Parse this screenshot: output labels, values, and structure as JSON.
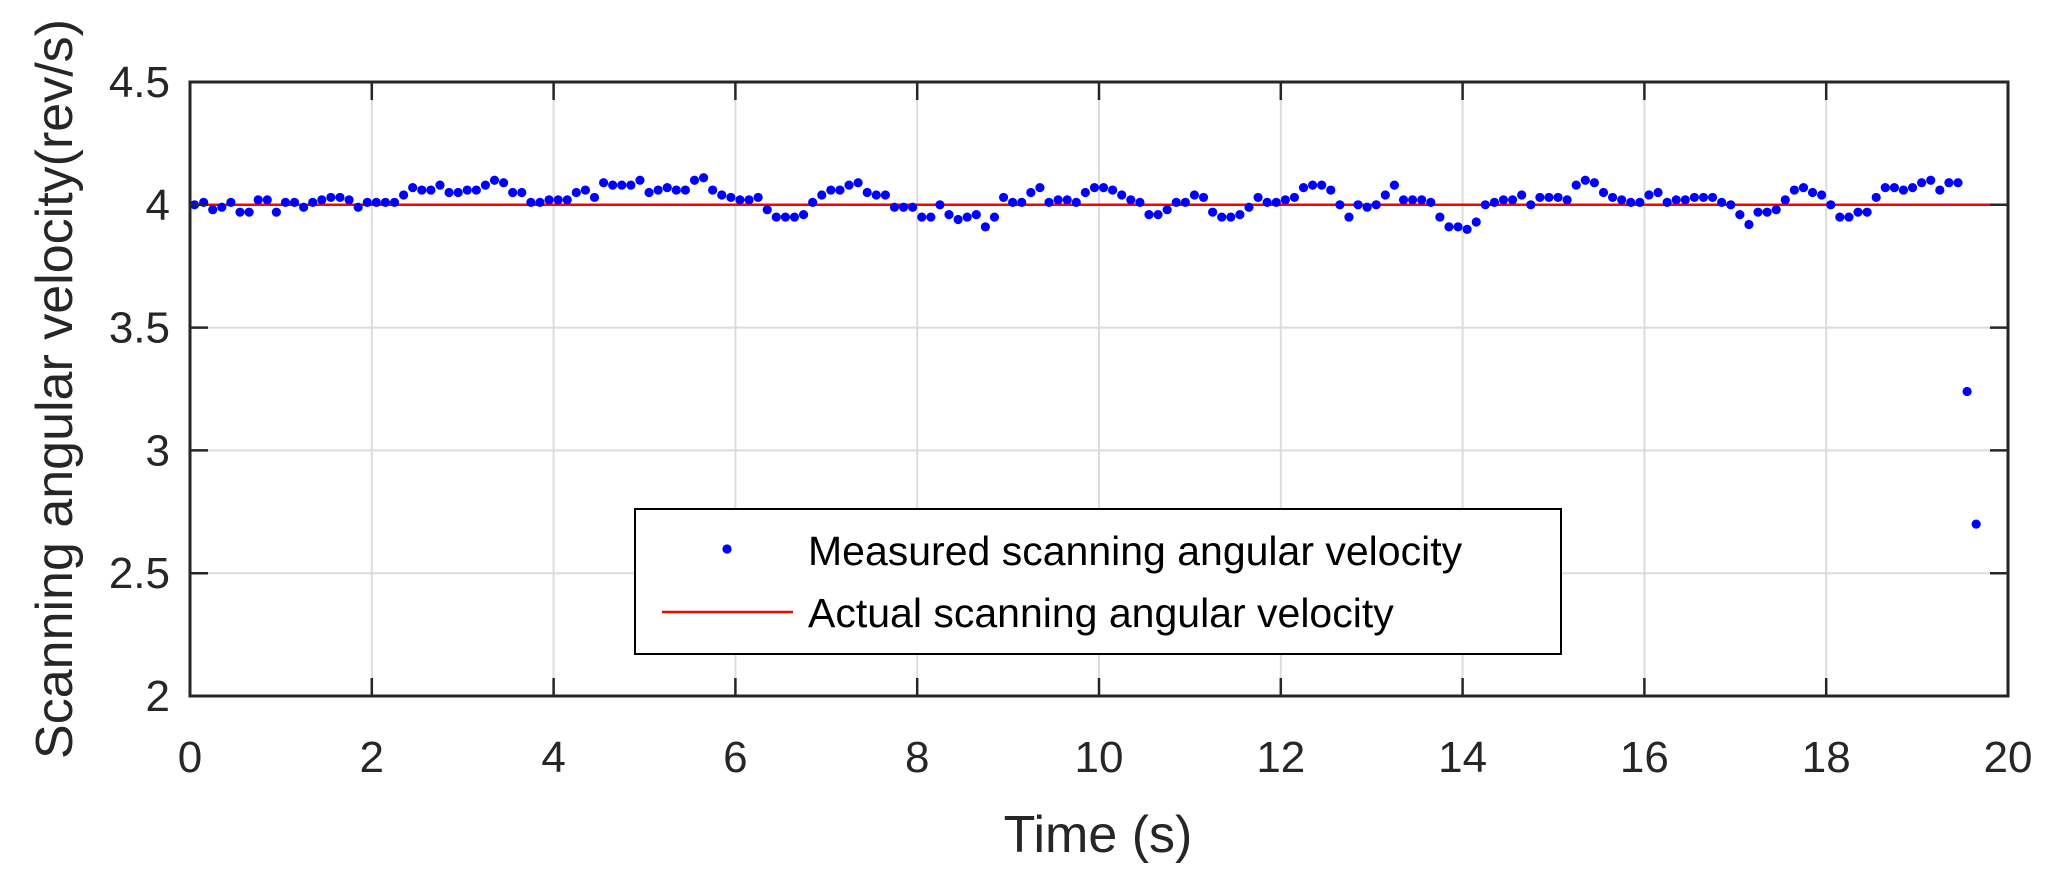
{
  "chart_data": {
    "type": "scatter",
    "xlabel": "Time (s)",
    "ylabel": "Scanning angular velocity(rev/s)",
    "xlim": [
      0,
      20
    ],
    "ylim": [
      2,
      4.5
    ],
    "xticks": [
      0,
      2,
      4,
      6,
      8,
      10,
      12,
      14,
      16,
      18,
      20
    ],
    "yticks": [
      2,
      2.5,
      3,
      3.5,
      4,
      4.5
    ],
    "xtick_labels": [
      "0",
      "2",
      "4",
      "6",
      "8",
      "10",
      "12",
      "14",
      "16",
      "18",
      "20"
    ],
    "ytick_labels": [
      "2",
      "2.5",
      "3",
      "3.5",
      "4",
      "4.5"
    ],
    "grid": true,
    "legend_position": "center-bottom",
    "series": [
      {
        "name": "Measured scanning angular velocity",
        "kind": "scatter",
        "color": "#0000ff",
        "x_start": 0.05,
        "x_step": 0.1,
        "y": [
          4.0,
          4.01,
          3.98,
          3.99,
          4.01,
          3.97,
          3.97,
          4.02,
          4.02,
          3.97,
          4.01,
          4.01,
          3.99,
          4.01,
          4.02,
          4.03,
          4.03,
          4.02,
          3.99,
          4.01,
          4.01,
          4.01,
          4.01,
          4.04,
          4.07,
          4.06,
          4.06,
          4.08,
          4.05,
          4.05,
          4.06,
          4.06,
          4.08,
          4.1,
          4.09,
          4.05,
          4.05,
          4.01,
          4.01,
          4.02,
          4.02,
          4.02,
          4.05,
          4.06,
          4.03,
          4.09,
          4.08,
          4.08,
          4.08,
          4.1,
          4.05,
          4.06,
          4.07,
          4.06,
          4.06,
          4.1,
          4.11,
          4.06,
          4.04,
          4.03,
          4.02,
          4.02,
          4.03,
          3.98,
          3.95,
          3.95,
          3.95,
          3.96,
          4.01,
          4.04,
          4.06,
          4.06,
          4.08,
          4.09,
          4.05,
          4.04,
          4.04,
          3.99,
          3.99,
          3.99,
          3.95,
          3.95,
          4.0,
          3.96,
          3.94,
          3.95,
          3.96,
          3.91,
          3.95,
          4.03,
          4.01,
          4.01,
          4.05,
          4.07,
          4.01,
          4.02,
          4.02,
          4.01,
          4.05,
          4.07,
          4.07,
          4.06,
          4.04,
          4.02,
          4.01,
          3.96,
          3.96,
          3.98,
          4.01,
          4.01,
          4.04,
          4.03,
          3.97,
          3.95,
          3.95,
          3.96,
          3.99,
          4.03,
          4.01,
          4.01,
          4.02,
          4.03,
          4.07,
          4.08,
          4.08,
          4.06,
          4.0,
          3.95,
          4.0,
          3.99,
          4.0,
          4.04,
          4.08,
          4.02,
          4.02,
          4.02,
          4.01,
          3.95,
          3.91,
          3.91,
          3.9,
          3.93,
          4.0,
          4.01,
          4.02,
          4.02,
          4.04,
          4.0,
          4.03,
          4.03,
          4.03,
          4.02,
          4.08,
          4.1,
          4.09,
          4.05,
          4.03,
          4.02,
          4.01,
          4.01,
          4.04,
          4.05,
          4.01,
          4.02,
          4.02,
          4.03,
          4.03,
          4.03,
          4.01,
          4.0,
          3.96,
          3.92,
          3.97,
          3.97,
          3.98,
          4.02,
          4.06,
          4.07,
          4.05,
          4.04,
          4.0,
          3.95,
          3.95,
          3.97,
          3.97,
          4.03,
          4.07,
          4.07,
          4.06,
          4.07,
          4.09,
          4.1,
          4.06,
          4.09,
          4.09,
          3.24,
          2.7
        ]
      },
      {
        "name": "Actual scanning angular velocity",
        "kind": "line",
        "color": "#ff0000",
        "x": [
          0,
          20
        ],
        "y": [
          4,
          4
        ]
      }
    ]
  }
}
